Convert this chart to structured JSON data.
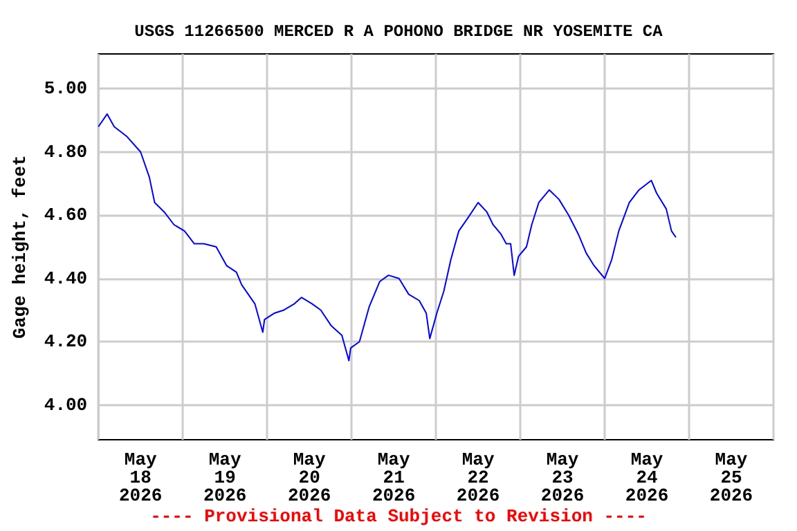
{
  "chart_data": {
    "type": "line",
    "title": "USGS 11266500 MERCED R A POHONO BRIDGE NR YOSEMITE CA",
    "ylabel": "Gage height, feet",
    "annotations": [
      "---- Provisional Data Subject to Revision ----"
    ],
    "xlim": [
      "2026-05-18T00:00",
      "2026-05-26T00:00"
    ],
    "xticks": [
      {
        "value": "2026-05-18T00:00",
        "label": null
      },
      {
        "value": "2026-05-18T12:00",
        "label": "May 18 2026"
      },
      {
        "value": "2026-05-19T00:00",
        "label": null
      },
      {
        "value": "2026-05-19T12:00",
        "label": "May 19 2026"
      },
      {
        "value": "2026-05-20T00:00",
        "label": null
      },
      {
        "value": "2026-05-20T12:00",
        "label": "May 20 2026"
      },
      {
        "value": "2026-05-21T00:00",
        "label": null
      },
      {
        "value": "2026-05-21T12:00",
        "label": "May 21 2026"
      },
      {
        "value": "2026-05-22T00:00",
        "label": null
      },
      {
        "value": "2026-05-22T12:00",
        "label": "May 22 2026"
      },
      {
        "value": "2026-05-23T00:00",
        "label": null
      },
      {
        "value": "2026-05-23T12:00",
        "label": "May 23 2026"
      },
      {
        "value": "2026-05-24T00:00",
        "label": null
      },
      {
        "value": "2026-05-24T12:00",
        "label": "May 24 2026"
      },
      {
        "value": "2026-05-25T00:00",
        "label": null
      },
      {
        "value": "2026-05-25T12:00",
        "label": "May 25 2026"
      },
      {
        "value": "2026-05-26T00:00",
        "label": null
      }
    ],
    "ylim": [
      3.89,
      5.11
    ],
    "yticks": [
      {
        "value": 4.0,
        "label": "4.00"
      },
      {
        "value": 4.2,
        "label": "4.20"
      },
      {
        "value": 4.4,
        "label": "4.40"
      },
      {
        "value": 4.6,
        "label": "4.60"
      },
      {
        "value": 4.8,
        "label": "4.80"
      },
      {
        "value": 5.0,
        "label": "5.00"
      }
    ],
    "grid": true,
    "marker": "none",
    "line_style": "solid",
    "series": [
      {
        "color": "#0000ff",
        "x": [
          "2026-05-18T00:00",
          "2026-05-18T02:30",
          "2026-05-18T04:30",
          "2026-05-18T08:00",
          "2026-05-18T12:00",
          "2026-05-18T14:30",
          "2026-05-18T16:00",
          "2026-05-18T18:45",
          "2026-05-18T21:30",
          "2026-05-19T00:30",
          "2026-05-19T03:15",
          "2026-05-19T06:00",
          "2026-05-19T09:30",
          "2026-05-19T12:30",
          "2026-05-19T15:15",
          "2026-05-19T16:45",
          "2026-05-19T20:30",
          "2026-05-19T22:45",
          "2026-05-19T23:15",
          "2026-05-20T02:00",
          "2026-05-20T04:45",
          "2026-05-20T07:45",
          "2026-05-20T09:45",
          "2026-05-20T12:45",
          "2026-05-20T15:15",
          "2026-05-20T18:15",
          "2026-05-20T21:15",
          "2026-05-20T23:15",
          "2026-05-20T23:45",
          "2026-05-21T02:15",
          "2026-05-21T05:00",
          "2026-05-21T08:00",
          "2026-05-21T10:30",
          "2026-05-21T13:30",
          "2026-05-21T16:15",
          "2026-05-21T19:15",
          "2026-05-21T21:15",
          "2026-05-21T22:15",
          "2026-05-22T00:15",
          "2026-05-22T02:15",
          "2026-05-22T04:15",
          "2026-05-22T06:30",
          "2026-05-22T09:00",
          "2026-05-22T12:00",
          "2026-05-22T14:30",
          "2026-05-22T16:15",
          "2026-05-22T18:30",
          "2026-05-22T20:00",
          "2026-05-22T21:15",
          "2026-05-22T22:15",
          "2026-05-22T23:30",
          "2026-05-23T01:45",
          "2026-05-23T03:15",
          "2026-05-23T05:15",
          "2026-05-23T08:15",
          "2026-05-23T11:00",
          "2026-05-23T13:45",
          "2026-05-23T16:30",
          "2026-05-23T18:45",
          "2026-05-23T21:00",
          "2026-05-24T00:00",
          "2026-05-24T02:00",
          "2026-05-24T04:00",
          "2026-05-24T07:00",
          "2026-05-24T09:45",
          "2026-05-24T13:15",
          "2026-05-24T14:45",
          "2026-05-24T17:30",
          "2026-05-24T19:00",
          "2026-05-24T20:15"
        ],
        "values": [
          4.88,
          4.92,
          4.88,
          4.85,
          4.8,
          4.72,
          4.64,
          4.61,
          4.57,
          4.55,
          4.51,
          4.51,
          4.5,
          4.44,
          4.42,
          4.38,
          4.32,
          4.23,
          4.27,
          4.29,
          4.3,
          4.32,
          4.34,
          4.32,
          4.3,
          4.25,
          4.22,
          4.14,
          4.18,
          4.2,
          4.31,
          4.39,
          4.41,
          4.4,
          4.35,
          4.33,
          4.29,
          4.21,
          4.29,
          4.36,
          4.46,
          4.55,
          4.59,
          4.64,
          4.61,
          4.57,
          4.54,
          4.51,
          4.51,
          4.41,
          4.47,
          4.5,
          4.57,
          4.64,
          4.68,
          4.65,
          4.6,
          4.54,
          4.48,
          4.44,
          4.4,
          4.46,
          4.55,
          4.64,
          4.68,
          4.71,
          4.67,
          4.62,
          4.55,
          4.53
        ]
      }
    ]
  }
}
